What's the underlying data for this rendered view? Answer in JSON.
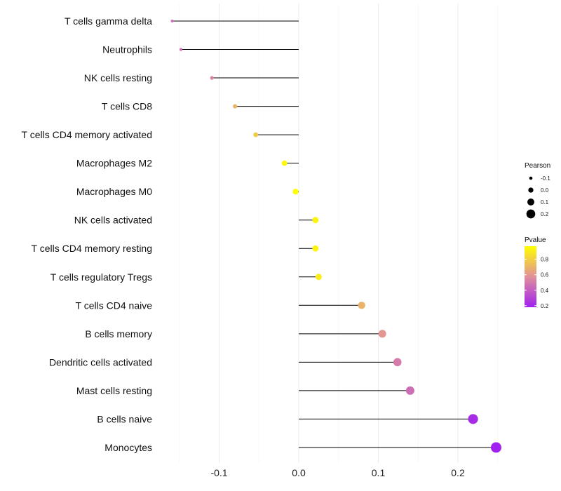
{
  "chart_data": {
    "type": "lollipop",
    "categories": [
      "T cells gamma delta",
      "Neutrophils",
      "NK cells resting",
      "T cells CD8",
      "T cells CD4 memory activated",
      "Macrophages M2",
      "Macrophages M0",
      "NK cells activated",
      "T cells CD4 memory resting",
      "T cells regulatory  Tregs ",
      "T cells CD4 naive",
      "B cells memory",
      "Dendritic cells activated",
      "Mast cells resting",
      "B cells naive",
      "Monocytes"
    ],
    "pearson": [
      -0.159,
      -0.148,
      -0.109,
      -0.08,
      -0.054,
      -0.018,
      -0.004,
      0.021,
      0.021,
      0.025,
      0.079,
      0.105,
      0.124,
      0.14,
      0.219,
      0.248
    ],
    "pvalue": [
      0.45,
      0.45,
      0.55,
      0.7,
      0.78,
      0.95,
      0.98,
      0.93,
      0.93,
      0.9,
      0.7,
      0.6,
      0.5,
      0.45,
      0.22,
      0.18
    ],
    "xlim": [
      -0.17,
      0.26
    ],
    "x_ticks": [
      -0.1,
      0.0,
      0.1,
      0.2
    ],
    "x_tick_labels": [
      "-0.1",
      "0.0",
      "0.1",
      "0.2"
    ],
    "xlabel": "",
    "ylabel": "",
    "grid": true,
    "legend": {
      "position": "right",
      "size_title": "Pearson",
      "size_values": [
        -0.1,
        0.0,
        0.1,
        0.2
      ],
      "size_labels": [
        "-0.1",
        "0.0",
        "0.1",
        "0.2"
      ],
      "color_title": "Pvalue",
      "color_labels": [
        "0.8",
        "0.6",
        "0.4",
        "0.2"
      ],
      "color_values": [
        0.8,
        0.6,
        0.4,
        0.2
      ],
      "color_range": [
        0.18,
        0.97
      ],
      "color_low": "#a020f0",
      "color_mid": "#e0909a",
      "color_high": "#ffff00"
    }
  }
}
